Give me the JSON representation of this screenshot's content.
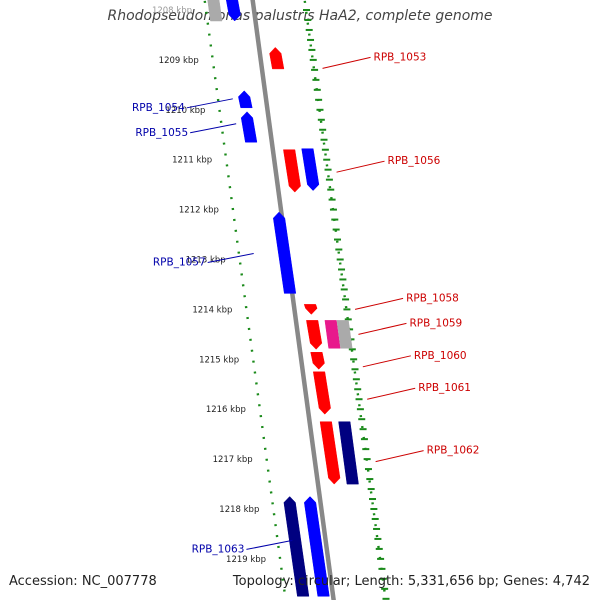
{
  "title": "Rhodopseudomonas palustris HaA2, complete genome",
  "accession": "Accession: NC_007778",
  "topology": "Topology: circular; Length: 5,331,656 bp; Genes: 4,742",
  "colors": {
    "forward": "#ff0000",
    "reverse": "#0000ff",
    "reverse_dark": "#000080",
    "other": "#aaaaaa",
    "magenta": "#e8198c",
    "backbone": "#888888",
    "ticks": "#1a8a1a",
    "forward_label": "#cc0000",
    "reverse_label": "#0000aa"
  },
  "ticks": [
    {
      "kbp": 1208,
      "label": "1208 kbp"
    },
    {
      "kbp": 1209,
      "label": "1209 kbp"
    },
    {
      "kbp": 1210,
      "label": "1210 kbp"
    },
    {
      "kbp": 1211,
      "label": "1211 kbp"
    },
    {
      "kbp": 1212,
      "label": "1212 kbp"
    },
    {
      "kbp": 1213,
      "label": "1213 kbp"
    },
    {
      "kbp": 1214,
      "label": "1214 kbp"
    },
    {
      "kbp": 1215,
      "label": "1215 kbp"
    },
    {
      "kbp": 1216,
      "label": "1216 kbp"
    },
    {
      "kbp": 1217,
      "label": "1217 kbp"
    },
    {
      "kbp": 1218,
      "label": "1218 kbp"
    },
    {
      "kbp": 1219,
      "label": "1219 kbp"
    }
  ],
  "genes": [
    {
      "start": 1207.75,
      "end": 1208.22,
      "lane": 1,
      "color": "other",
      "arrow": false
    },
    {
      "start": 1207.75,
      "end": 1208.22,
      "lane": 2,
      "color": "reverse",
      "arrow": true,
      "dir": "down"
    },
    {
      "start": 1208.75,
      "end": 1209.18,
      "lane": 4,
      "color": "forward",
      "arrow": true,
      "dir": "up"
    },
    {
      "start": 1209.62,
      "end": 1209.96,
      "lane": 2,
      "color": "reverse",
      "arrow": true,
      "dir": "up"
    },
    {
      "start": 1210.04,
      "end": 1210.65,
      "lane": 2,
      "color": "reverse",
      "arrow": true,
      "dir": "up"
    },
    {
      "start": 1210.8,
      "end": 1211.65,
      "lane": 4,
      "color": "forward",
      "arrow": true,
      "dir": "down"
    },
    {
      "start": 1210.78,
      "end": 1211.62,
      "lane": 5,
      "color": "reverse",
      "arrow": true,
      "dir": "down"
    },
    {
      "start": 1212.05,
      "end": 1213.68,
      "lane": 3,
      "color": "reverse",
      "arrow": true,
      "dir": "up"
    },
    {
      "start": 1213.9,
      "end": 1214.1,
      "lane": 4,
      "color": "forward",
      "arrow": true,
      "dir": "down"
    },
    {
      "start": 1214.22,
      "end": 1214.8,
      "lane": 4,
      "color": "forward",
      "arrow": true,
      "dir": "down"
    },
    {
      "start": 1214.22,
      "end": 1214.78,
      "lane": 5,
      "color": "magenta",
      "arrow": false
    },
    {
      "start": 1214.22,
      "end": 1214.78,
      "lane": 5.65,
      "color": "other",
      "arrow": false
    },
    {
      "start": 1214.86,
      "end": 1215.2,
      "lane": 4,
      "color": "forward",
      "arrow": true,
      "dir": "down"
    },
    {
      "start": 1215.25,
      "end": 1216.1,
      "lane": 4,
      "color": "forward",
      "arrow": true,
      "dir": "down"
    },
    {
      "start": 1216.25,
      "end": 1217.5,
      "lane": 4,
      "color": "forward",
      "arrow": true,
      "dir": "down"
    },
    {
      "start": 1216.25,
      "end": 1217.5,
      "lane": 5,
      "color": "reverse_dark",
      "arrow": false
    },
    {
      "start": 1217.75,
      "end": 1219.75,
      "lane": 1.5,
      "color": "reverse_dark",
      "arrow": true,
      "dir": "up"
    },
    {
      "start": 1217.75,
      "end": 1219.75,
      "lane": 2.6,
      "color": "reverse",
      "arrow": true,
      "dir": "up"
    }
  ],
  "labels": [
    {
      "text": "RPB_1053",
      "side": "right",
      "kbp": 1208.97
    },
    {
      "text": "RPB_1054",
      "side": "left",
      "kbp": 1209.9
    },
    {
      "text": "RPB_1055",
      "side": "left",
      "kbp": 1210.4
    },
    {
      "text": "RPB_1056",
      "side": "right",
      "kbp": 1211.05
    },
    {
      "text": "RPB_1057",
      "side": "left",
      "kbp": 1213.0
    },
    {
      "text": "RPB_1058",
      "side": "right",
      "kbp": 1213.8
    },
    {
      "text": "RPB_1059",
      "side": "right",
      "kbp": 1214.3
    },
    {
      "text": "RPB_1060",
      "side": "right",
      "kbp": 1214.95
    },
    {
      "text": "RPB_1061",
      "side": "right",
      "kbp": 1215.6
    },
    {
      "text": "RPB_1062",
      "side": "right",
      "kbp": 1216.85
    },
    {
      "text": "RPB_1063",
      "side": "left",
      "kbp": 1218.75
    }
  ]
}
